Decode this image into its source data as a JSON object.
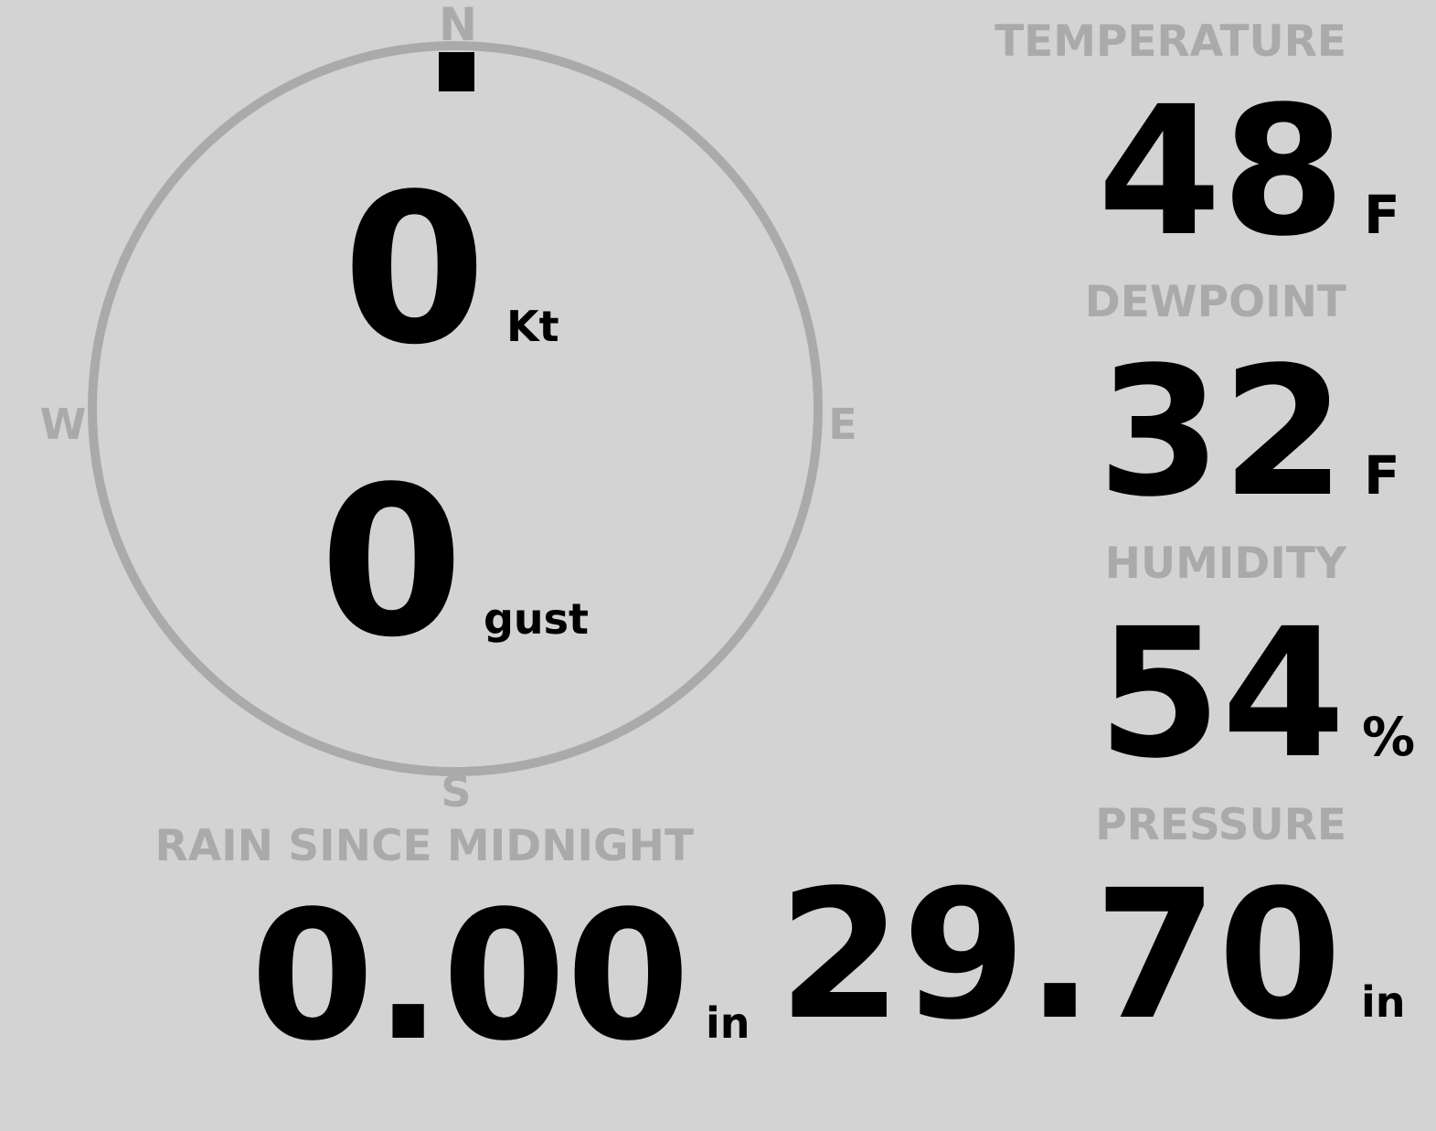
{
  "colors": {
    "background": "#d3d3d3",
    "label": "#aaaaaa",
    "value": "#000000"
  },
  "wind": {
    "direction_deg": 0,
    "cardinals": {
      "n": "N",
      "e": "E",
      "s": "S",
      "w": "W"
    },
    "speed": "0",
    "speed_unit": "Kt",
    "gust": "0",
    "gust_unit": "gust"
  },
  "temperature": {
    "label": "TEMPERATURE",
    "value": "48",
    "unit": "F"
  },
  "dewpoint": {
    "label": "DEWPOINT",
    "value": "32",
    "unit": "F"
  },
  "humidity": {
    "label": "HUMIDITY",
    "value": "54",
    "unit": "%"
  },
  "pressure": {
    "label": "PRESSURE",
    "value": "29.70",
    "unit": "in"
  },
  "rain": {
    "label": "RAIN SINCE MIDNIGHT",
    "value": "0.00",
    "unit": "in"
  }
}
